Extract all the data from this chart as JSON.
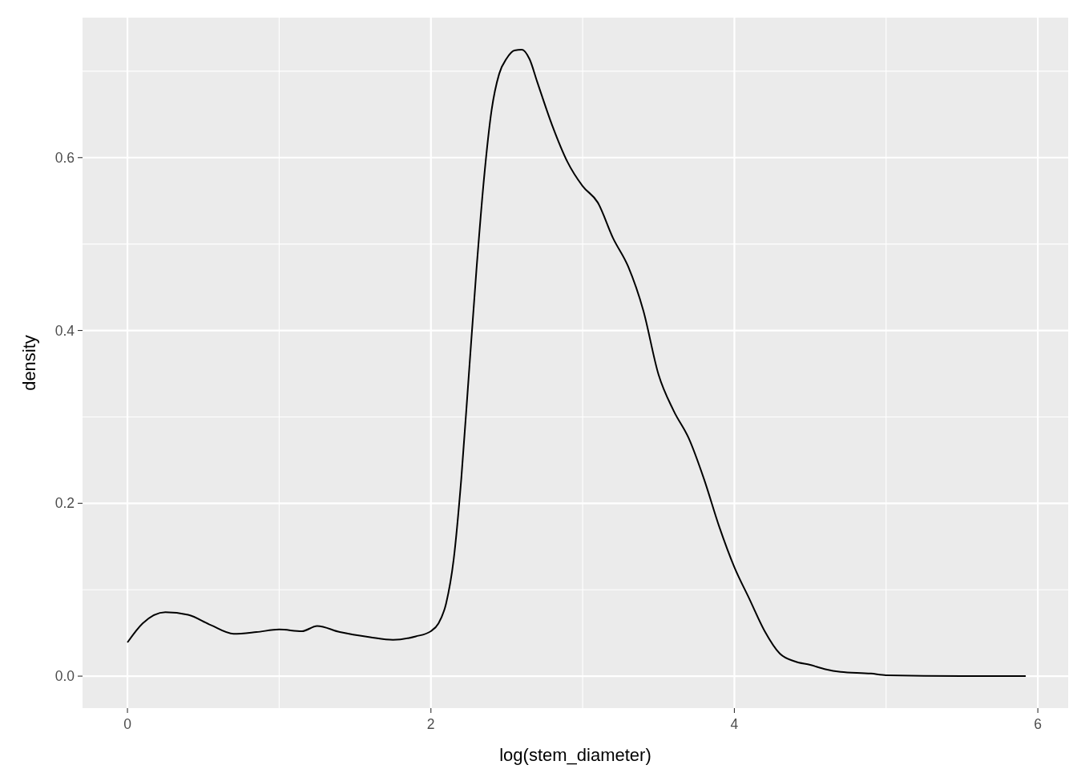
{
  "chart_data": {
    "type": "line",
    "xlabel": "log(stem_diameter)",
    "ylabel": "density",
    "x": [
      0,
      0.1,
      0.25,
      0.4,
      0.55,
      0.7,
      0.85,
      1.0,
      1.15,
      1.25,
      1.4,
      1.6,
      1.75,
      1.9,
      2.0,
      2.05,
      2.1,
      2.15,
      2.2,
      2.25,
      2.3,
      2.35,
      2.4,
      2.45,
      2.5,
      2.55,
      2.6,
      2.65,
      2.7,
      2.8,
      2.9,
      3.0,
      3.1,
      3.2,
      3.3,
      3.4,
      3.5,
      3.6,
      3.7,
      3.8,
      3.9,
      4.0,
      4.1,
      4.2,
      4.3,
      4.4,
      4.5,
      4.6,
      4.7,
      4.9,
      5.0,
      5.5,
      5.92
    ],
    "series": [
      {
        "color": "#000000",
        "values": [
          0.039,
          0.061,
          0.074,
          0.071,
          0.059,
          0.049,
          0.051,
          0.054,
          0.052,
          0.058,
          0.051,
          0.045,
          0.042,
          0.046,
          0.052,
          0.061,
          0.084,
          0.135,
          0.228,
          0.349,
          0.47,
          0.576,
          0.655,
          0.697,
          0.715,
          0.724,
          0.725,
          0.714,
          0.688,
          0.637,
          0.595,
          0.567,
          0.548,
          0.507,
          0.474,
          0.423,
          0.349,
          0.307,
          0.275,
          0.228,
          0.173,
          0.126,
          0.089,
          0.052,
          0.026,
          0.017,
          0.013,
          0.008,
          0.005,
          0.003,
          0.001,
          0.0,
          0.0
        ]
      }
    ],
    "xlim": [
      -0.296,
      6.2
    ],
    "ylim": [
      -0.037,
      0.762
    ],
    "xticks": [
      0,
      2,
      4,
      6
    ],
    "yticks": [
      {
        "value": 0,
        "label": "0.0"
      },
      {
        "value": 0.2,
        "label": "0.2"
      },
      {
        "value": 0.4,
        "label": "0.4"
      },
      {
        "value": 0.6,
        "label": "0.6"
      }
    ],
    "grid": true,
    "marker": "none",
    "line_style": "solid"
  }
}
